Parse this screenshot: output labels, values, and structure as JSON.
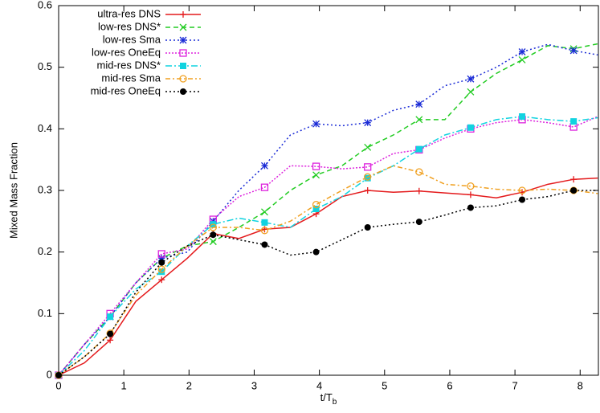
{
  "chart_data": {
    "type": "line",
    "xlabel": {
      "text": "t/T",
      "sub": "b"
    },
    "ylabel": "Mixed Mass Fraction",
    "x": [
      0,
      0.395,
      0.79,
      1.185,
      1.58,
      1.975,
      2.37,
      2.765,
      3.16,
      3.555,
      3.95,
      4.345,
      4.74,
      5.135,
      5.53,
      5.925,
      6.32,
      6.715,
      7.11,
      7.505,
      7.9,
      8.27
    ],
    "xlim": [
      0,
      8.28
    ],
    "xticks": [
      0,
      1,
      2,
      3,
      4,
      5,
      6,
      7,
      8
    ],
    "ylim": [
      0,
      0.6
    ],
    "yticks": [
      0,
      0.1,
      0.2,
      0.3,
      0.4,
      0.5,
      0.6
    ],
    "marker_every": 2,
    "legend": "top-left",
    "series": [
      {
        "name": "ultra-res DNS",
        "color": "#e41a1c",
        "marker": "plus",
        "dash": "none",
        "values": [
          0,
          0.02,
          0.057,
          0.12,
          0.155,
          0.19,
          0.23,
          0.222,
          0.237,
          0.24,
          0.262,
          0.29,
          0.3,
          0.297,
          0.299,
          0.296,
          0.293,
          0.288,
          0.297,
          0.31,
          0.318,
          0.32
        ]
      },
      {
        "name": "low-res DNS*",
        "color": "#22cc22",
        "marker": "cross",
        "dash": "6,4",
        "values": [
          0,
          0.05,
          0.095,
          0.15,
          0.19,
          0.21,
          0.217,
          0.24,
          0.265,
          0.3,
          0.325,
          0.34,
          0.37,
          0.39,
          0.415,
          0.415,
          0.46,
          0.49,
          0.512,
          0.535,
          0.53,
          0.538
        ]
      },
      {
        "name": "low-res Sma",
        "color": "#1a2bd6",
        "marker": "star",
        "dash": "2,3",
        "values": [
          0,
          0.05,
          0.095,
          0.15,
          0.19,
          0.2,
          0.25,
          0.3,
          0.34,
          0.39,
          0.408,
          0.405,
          0.41,
          0.43,
          0.44,
          0.47,
          0.481,
          0.5,
          0.525,
          0.537,
          0.527,
          0.52
        ]
      },
      {
        "name": "low-res OneEq",
        "color": "#dd22dd",
        "marker": "open-square",
        "dash": "2,2",
        "values": [
          0,
          0.05,
          0.1,
          0.15,
          0.197,
          0.205,
          0.253,
          0.29,
          0.305,
          0.34,
          0.339,
          0.335,
          0.338,
          0.36,
          0.366,
          0.385,
          0.4,
          0.41,
          0.415,
          0.41,
          0.403,
          0.42
        ]
      },
      {
        "name": "mid-res DNS*",
        "color": "#11d3e0",
        "marker": "filled-square",
        "dash": "8,3,2,3",
        "values": [
          0,
          0.04,
          0.095,
          0.14,
          0.168,
          0.21,
          0.245,
          0.255,
          0.248,
          0.24,
          0.27,
          0.29,
          0.32,
          0.34,
          0.367,
          0.39,
          0.402,
          0.415,
          0.42,
          0.415,
          0.412,
          0.418
        ]
      },
      {
        "name": "mid-res Sma",
        "color": "#f0a020",
        "marker": "open-circle",
        "dash": "6,3,2,3",
        "values": [
          0,
          0.03,
          0.068,
          0.13,
          0.172,
          0.21,
          0.24,
          0.24,
          0.235,
          0.25,
          0.277,
          0.3,
          0.322,
          0.34,
          0.33,
          0.31,
          0.307,
          0.302,
          0.3,
          0.302,
          0.3,
          0.295
        ]
      },
      {
        "name": "mid-res OneEq",
        "color": "#000000",
        "marker": "filled-circle",
        "dash": "2,3",
        "values": [
          0,
          0.03,
          0.067,
          0.135,
          0.183,
          0.21,
          0.228,
          0.22,
          0.212,
          0.195,
          0.2,
          0.22,
          0.24,
          0.245,
          0.249,
          0.26,
          0.272,
          0.275,
          0.285,
          0.29,
          0.3,
          0.3
        ]
      }
    ]
  }
}
